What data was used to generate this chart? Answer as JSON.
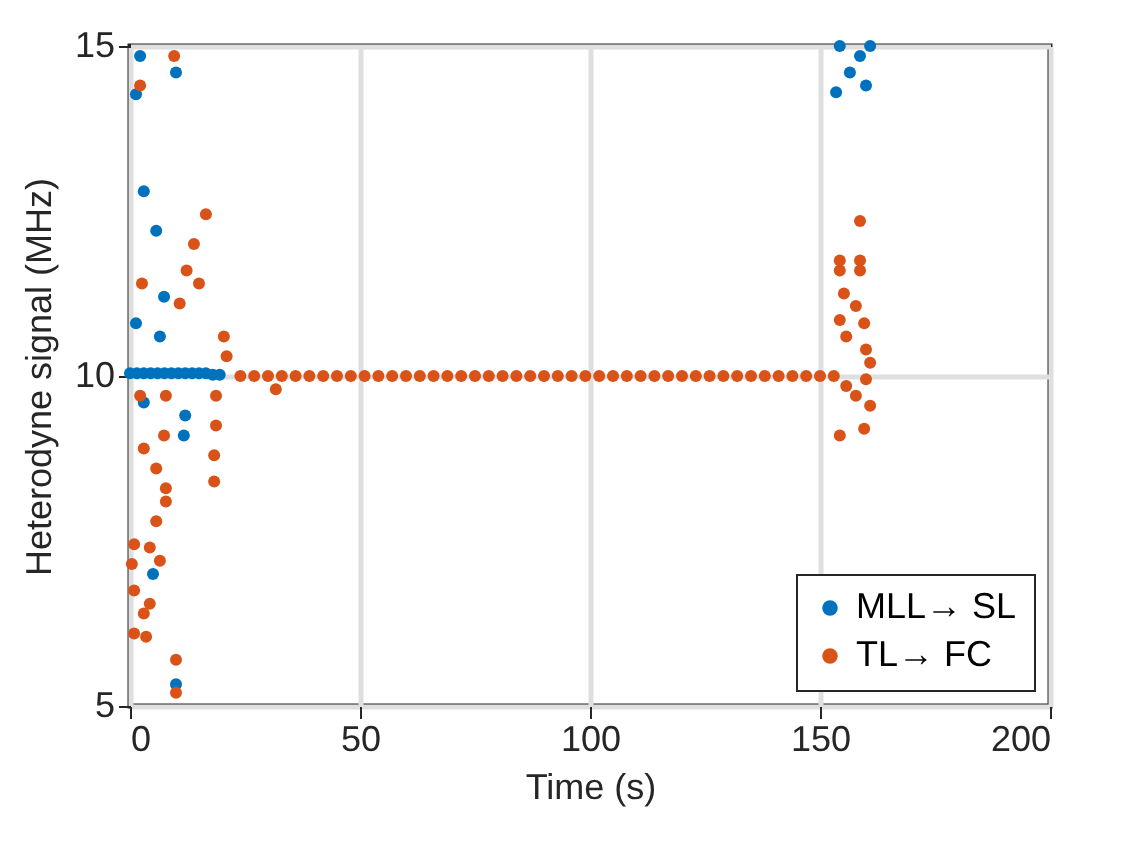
{
  "chart_data": {
    "type": "scatter",
    "xlabel": "Time (s)",
    "ylabel": "Heterodyne signal (MHz)",
    "xlim": [
      0,
      200
    ],
    "xticks": [
      0,
      50,
      100,
      150,
      200
    ],
    "ylim": [
      5,
      15
    ],
    "yticks": [
      5,
      10,
      15
    ],
    "grid": true,
    "legend": "bottom right",
    "marker": "circle",
    "series": [
      {
        "name": "MLL→ SL",
        "color": "#0072bd",
        "x": [
          2.2,
          1.3,
          3,
          5.7,
          10,
          7.4,
          1.3,
          6.5,
          3,
          12,
          11.7,
          5,
          10,
          0,
          1.5,
          3,
          4.5,
          6,
          7.5,
          9,
          10.5,
          12,
          13.5,
          15,
          16.5,
          18,
          19.5,
          154.3,
          160.9,
          153.5,
          160,
          156.5,
          158.7
        ],
        "values": [
          14.85,
          14.27,
          12.8,
          12.2,
          14.6,
          11.2,
          10.8,
          10.6,
          9.6,
          9.4,
          9.1,
          7.0,
          5.33,
          10.04,
          10.04,
          10.04,
          10.04,
          10.04,
          10.04,
          10.04,
          10.04,
          10.04,
          10.04,
          10.04,
          10.04,
          10.02,
          10.02,
          15,
          15,
          14.3,
          14.4,
          14.6,
          14.85
        ]
      },
      {
        "name": "TL→ FC",
        "color": "#d95319",
        "x": [
          9.6,
          2.2,
          16.5,
          13.9,
          12.3,
          15,
          10.8,
          2.6,
          20.4,
          21,
          31.7,
          2.2,
          7.8,
          18.7,
          18.7,
          7.4,
          3,
          18.3,
          18.3,
          5.7,
          7.8,
          7.8,
          5.7,
          0.9,
          4.3,
          6.5,
          0.4,
          0.9,
          4.3,
          3,
          0.9,
          3.5,
          10,
          10,
          24,
          27,
          30,
          33,
          36,
          39,
          42,
          45,
          48,
          51,
          54,
          57,
          60,
          63,
          66,
          69,
          72,
          75,
          78,
          81,
          84,
          87,
          90,
          93,
          96,
          99,
          102,
          105,
          108,
          111,
          114,
          117,
          120,
          123,
          126,
          129,
          132,
          135,
          138,
          141,
          144,
          147,
          150,
          153,
          158.7,
          154.3,
          158.7,
          154.3,
          158.7,
          155.2,
          157.8,
          154.3,
          159.6,
          155.7,
          160,
          160.9,
          160,
          155.7,
          157.8,
          160.9,
          154.3,
          159.6
        ],
        "values": [
          14.85,
          14.4,
          12.45,
          12.0,
          11.6,
          11.4,
          11.1,
          11.4,
          10.6,
          10.3,
          9.8,
          9.7,
          9.7,
          9.7,
          9.25,
          9.1,
          8.9,
          8.8,
          8.4,
          8.6,
          8.3,
          8.1,
          7.8,
          7.45,
          7.4,
          7.2,
          7.15,
          6.75,
          6.55,
          6.4,
          6.1,
          6.05,
          5.7,
          5.2,
          10,
          10,
          10,
          10,
          10,
          10,
          10,
          10,
          10,
          10,
          10,
          10,
          10,
          10,
          10,
          10,
          10,
          10,
          10,
          10,
          10,
          10,
          10,
          10,
          10,
          10,
          10,
          10,
          10,
          10,
          10,
          10,
          10,
          10,
          10,
          10,
          10,
          10,
          10,
          10,
          10,
          10,
          10,
          10,
          12.35,
          11.75,
          11.75,
          11.6,
          11.6,
          11.25,
          11.06,
          10.85,
          10.8,
          10.6,
          10.4,
          10.2,
          9.95,
          9.85,
          9.7,
          9.55,
          9.1,
          9.2
        ]
      }
    ]
  }
}
